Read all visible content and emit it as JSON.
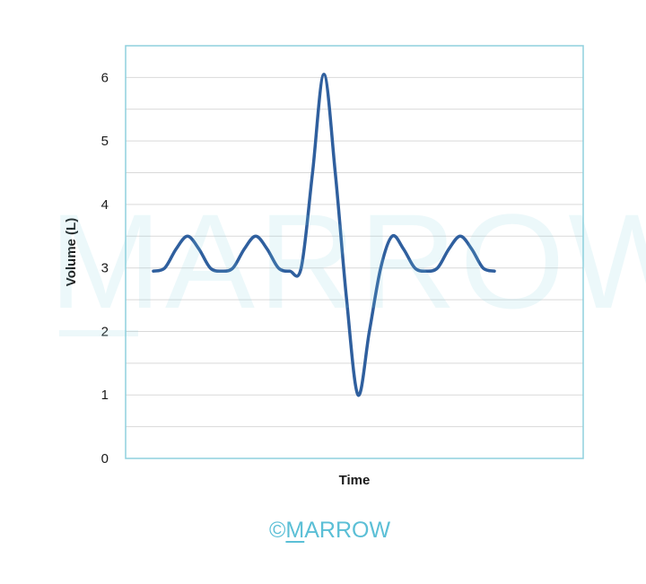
{
  "chart_data": {
    "type": "line",
    "title": "",
    "xlabel": "Time",
    "ylabel": "Volume (L)",
    "ylim": [
      0,
      6.5
    ],
    "yticks": [
      0,
      1,
      2,
      3,
      4,
      5,
      6
    ],
    "grid": true,
    "series": [
      {
        "values": [
          2.95,
          3.0,
          3.3,
          3.5,
          3.3,
          3.0,
          2.95,
          3.0,
          3.3,
          3.5,
          3.3,
          3.0,
          2.95,
          3.0,
          4.5,
          6.05,
          4.5,
          2.5,
          1.0,
          2.0,
          3.0,
          3.5,
          3.3,
          3.0,
          2.95,
          3.0,
          3.3,
          3.5,
          3.3,
          3.0,
          2.95
        ]
      }
    ],
    "colors": {
      "line": "#2f5f9e",
      "frame": "#8fd0dd",
      "grid": "#d9d9d9"
    }
  },
  "watermark": {
    "text": "MARROW"
  },
  "footer": {
    "copyright": "©",
    "brand_m": "M",
    "brand_rest": "ARROW"
  }
}
